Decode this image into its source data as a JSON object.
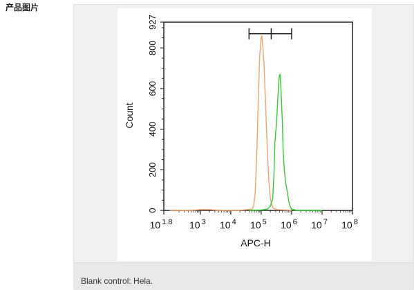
{
  "page": {
    "section_label": "产品图片",
    "caption": "Blank control: Hela."
  },
  "colors": {
    "panel_bg": "#f1f1f1",
    "caption_bg": "#e9e9e9",
    "blank_curve": "#f2a36b",
    "sample_curve": "#33cc33"
  },
  "chart_data": {
    "type": "line",
    "xlabel": "APC-H",
    "ylabel": "Count",
    "xscale": "log",
    "xlim": [
      1.8,
      8
    ],
    "ylim": [
      0,
      927
    ],
    "x_ticks": [
      {
        "base": "10",
        "exp": "1.8",
        "value": 1.8
      },
      {
        "base": "10",
        "exp": "3",
        "value": 3
      },
      {
        "base": "10",
        "exp": "4",
        "value": 4
      },
      {
        "base": "10",
        "exp": "5",
        "value": 5
      },
      {
        "base": "10",
        "exp": "6",
        "value": 6
      },
      {
        "base": "10",
        "exp": "7",
        "value": 7
      },
      {
        "base": "10",
        "exp": "8",
        "value": 8
      }
    ],
    "y_ticks": [
      {
        "label": "0",
        "value": 0
      },
      {
        "label": "200",
        "value": 200
      },
      {
        "label": "400",
        "value": 400
      },
      {
        "label": "600",
        "value": 600
      },
      {
        "label": "800",
        "value": 800
      },
      {
        "label": "927",
        "value": 927
      }
    ],
    "gate": {
      "start": 4.6,
      "mid": 5.33,
      "end": 6.0,
      "y": 870
    },
    "series": [
      {
        "color": "#f2a36b",
        "points": [
          [
            2.0,
            0
          ],
          [
            2.7,
            0
          ],
          [
            3.0,
            4
          ],
          [
            3.3,
            4
          ],
          [
            3.6,
            0
          ],
          [
            4.2,
            0
          ],
          [
            4.4,
            2
          ],
          [
            4.7,
            6
          ],
          [
            4.75,
            20
          ],
          [
            4.8,
            80
          ],
          [
            4.85,
            250
          ],
          [
            4.9,
            520
          ],
          [
            4.95,
            760
          ],
          [
            5.0,
            850
          ],
          [
            5.02,
            860
          ],
          [
            5.05,
            820
          ],
          [
            5.1,
            700
          ],
          [
            5.15,
            500
          ],
          [
            5.2,
            300
          ],
          [
            5.25,
            150
          ],
          [
            5.3,
            60
          ],
          [
            5.35,
            25
          ],
          [
            5.4,
            10
          ],
          [
            5.5,
            4
          ],
          [
            6.0,
            0
          ]
        ]
      },
      {
        "color": "#33cc33",
        "points": [
          [
            4.6,
            0
          ],
          [
            5.0,
            2
          ],
          [
            5.2,
            6
          ],
          [
            5.3,
            20
          ],
          [
            5.38,
            60
          ],
          [
            5.42,
            180
          ],
          [
            5.45,
            330
          ],
          [
            5.48,
            390
          ],
          [
            5.5,
            420
          ],
          [
            5.53,
            500
          ],
          [
            5.57,
            620
          ],
          [
            5.6,
            665
          ],
          [
            5.62,
            670
          ],
          [
            5.65,
            600
          ],
          [
            5.7,
            420
          ],
          [
            5.72,
            300
          ],
          [
            5.76,
            200
          ],
          [
            5.8,
            140
          ],
          [
            5.85,
            100
          ],
          [
            5.9,
            50
          ],
          [
            5.95,
            20
          ],
          [
            6.0,
            5
          ],
          [
            6.2,
            0
          ],
          [
            7.0,
            0
          ]
        ]
      }
    ]
  }
}
